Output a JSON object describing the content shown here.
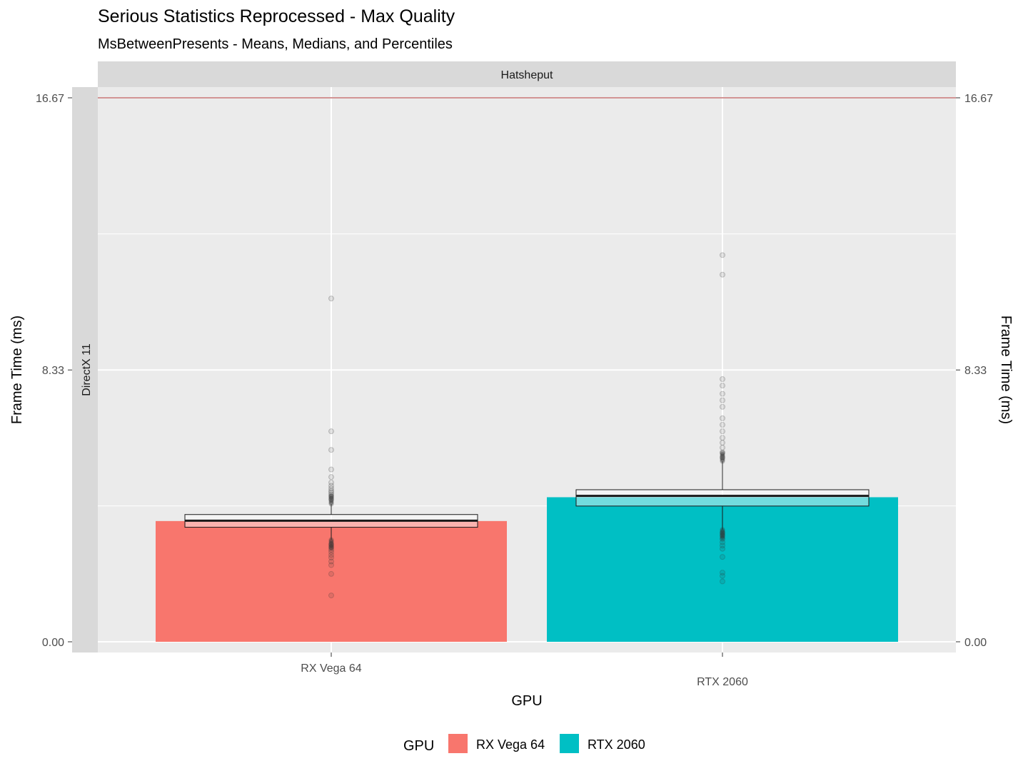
{
  "chart_data": {
    "type": "bar",
    "title": "Serious Statistics Reprocessed - Max Quality",
    "subtitle": "MsBetweenPresents - Means, Medians, and Percentiles",
    "facet_column": "Hatsheput",
    "facet_row": "DirectX 11",
    "xlabel": "GPU",
    "ylabel": "Frame Time (ms)",
    "ylabel_right": "Frame Time (ms)",
    "ylim": [
      0,
      16.67
    ],
    "yticks": [
      0,
      8.33,
      16.67
    ],
    "ytick_labels": [
      "0.00",
      "8.33",
      "16.67"
    ],
    "reference_line": 16.67,
    "reference_line_color": "#a52a2a",
    "categories": [
      "RX Vega 64",
      "RTX 2060"
    ],
    "category_colors": [
      "#f8766d",
      "#00bfc4"
    ],
    "series": [
      {
        "name": "Mean",
        "values": [
          3.7,
          4.43
        ]
      }
    ],
    "boxes": [
      {
        "category": "RX Vega 64",
        "median": 3.71,
        "q1": 3.51,
        "q3": 3.9,
        "whisker_low": 3.13,
        "whisker_high": 4.22,
        "outliers_high": [
          4.37,
          4.45,
          4.52,
          4.58,
          4.63,
          4.7,
          4.78,
          4.88,
          5.05,
          5.28,
          5.88,
          6.45,
          10.52
        ],
        "outliers_low": [
          2.98,
          2.9,
          2.82,
          2.75,
          2.66,
          2.58,
          2.46,
          2.35,
          2.08,
          1.42
        ]
      },
      {
        "category": "RTX 2060",
        "median": 4.47,
        "q1": 4.16,
        "q3": 4.66,
        "whisker_low": 3.44,
        "whisker_high": 5.53,
        "outliers_high": [
          5.65,
          5.8,
          5.95,
          6.1,
          6.25,
          6.45,
          6.65,
          6.85,
          7.2,
          7.4,
          7.6,
          7.85,
          8.05,
          11.25,
          11.85
        ],
        "outliers_low": [
          3.34,
          3.26,
          3.15,
          3.05,
          2.95,
          2.85,
          2.6,
          2.12,
          2.02,
          1.85
        ]
      }
    ],
    "legend": {
      "title": "GPU",
      "position": "bottom",
      "entries": [
        "RX Vega 64",
        "RTX 2060"
      ]
    },
    "grid": true
  }
}
